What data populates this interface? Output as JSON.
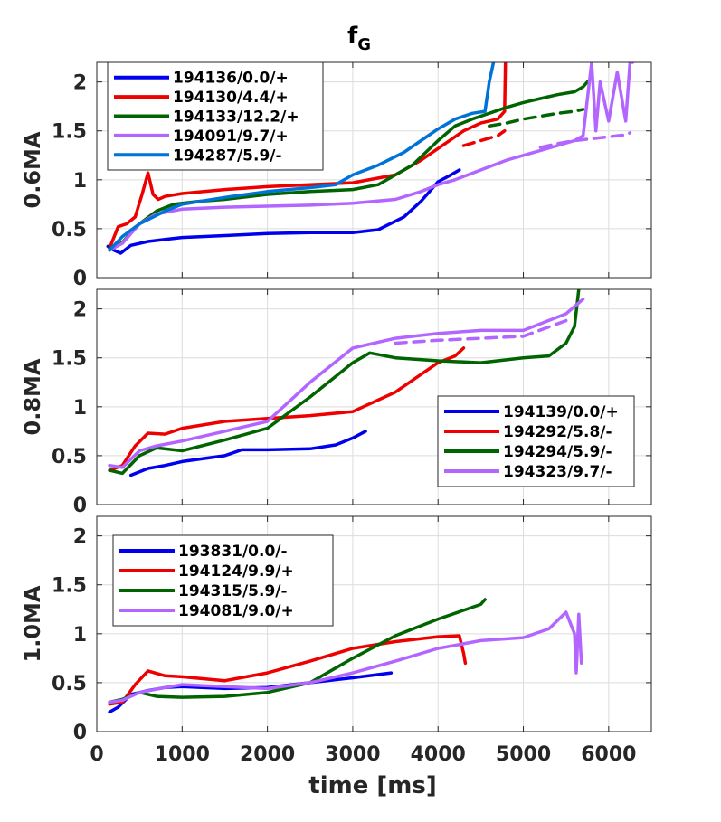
{
  "chart_data": {
    "type": "line",
    "title_main": "f",
    "title_sub": "G",
    "xlabel": "time [ms]",
    "xlim": [
      0,
      6500
    ],
    "xticks": [
      0,
      1000,
      2000,
      3000,
      4000,
      5000,
      6000
    ],
    "xtick_labels": [
      "0",
      "1000",
      "2000",
      "3000",
      "4000",
      "5000",
      "6000"
    ],
    "ylim": [
      0,
      2.2
    ],
    "yticks": [
      0,
      0.5,
      1,
      1.5,
      2
    ],
    "ytick_labels": [
      "0",
      "0.5",
      "1",
      "1.5",
      "2"
    ],
    "grid": true,
    "panels": [
      {
        "ylabel": "0.6MA",
        "legend_position": "top-left",
        "series": [
          {
            "name": "194136/0.0/+",
            "color": "#0000ee",
            "dashed": false,
            "x": [
              130,
              200,
              280,
              400,
              600,
              800,
              1000,
              1500,
              2000,
              2500,
              3000,
              3300,
              3600,
              3800,
              4000,
              4150,
              4250
            ],
            "y": [
              0.32,
              0.28,
              0.25,
              0.33,
              0.37,
              0.39,
              0.41,
              0.43,
              0.45,
              0.46,
              0.46,
              0.49,
              0.62,
              0.78,
              0.98,
              1.05,
              1.1
            ]
          },
          {
            "name": "194130/4.4/+",
            "color": "#ee0000",
            "dashed": false,
            "x": [
              150,
              250,
              350,
              450,
              530,
              600,
              660,
              720,
              800,
              1000,
              1500,
              2000,
              2500,
              3000,
              3500,
              3800,
              4100,
              4300,
              4500,
              4700,
              4780,
              4790
            ],
            "y": [
              0.3,
              0.52,
              0.55,
              0.62,
              0.85,
              1.07,
              0.85,
              0.8,
              0.83,
              0.86,
              0.9,
              0.93,
              0.95,
              0.97,
              1.05,
              1.2,
              1.38,
              1.5,
              1.58,
              1.62,
              1.7,
              2.2
            ]
          },
          {
            "name": "194130/4.4/+ (dashed)",
            "color": "#ee0000",
            "dashed": true,
            "x": [
              4300,
              4500,
              4700,
              4780
            ],
            "y": [
              1.35,
              1.4,
              1.45,
              1.5
            ]
          },
          {
            "name": "194133/12.2/+",
            "color": "#006400",
            "dashed": false,
            "x": [
              150,
              300,
              500,
              700,
              900,
              1200,
              1500,
              2000,
              2500,
              3000,
              3300,
              3700,
              4000,
              4200,
              4400,
              4600,
              4800,
              5000,
              5200,
              5400,
              5600,
              5700,
              5750
            ],
            "y": [
              0.3,
              0.36,
              0.55,
              0.68,
              0.75,
              0.78,
              0.8,
              0.85,
              0.88,
              0.9,
              0.95,
              1.15,
              1.4,
              1.55,
              1.62,
              1.68,
              1.74,
              1.79,
              1.83,
              1.87,
              1.9,
              1.95,
              2.0
            ]
          },
          {
            "name": "194133/12.2/+ (dashed)",
            "color": "#006400",
            "dashed": true,
            "x": [
              4600,
              4800,
              5000,
              5200,
              5400,
              5600,
              5700
            ],
            "y": [
              1.55,
              1.58,
              1.62,
              1.65,
              1.68,
              1.7,
              1.72
            ]
          },
          {
            "name": "194091/9.7/+",
            "color": "#b266ff",
            "dashed": false,
            "x": [
              150,
              300,
              500,
              700,
              1000,
              1500,
              2000,
              2500,
              3000,
              3500,
              3800,
              4000,
              4200,
              4500,
              4800,
              5000,
              5200,
              5400,
              5600,
              5700,
              5800,
              5850,
              5900,
              6000,
              6100,
              6200,
              6250,
              6280
            ],
            "y": [
              0.28,
              0.35,
              0.55,
              0.65,
              0.7,
              0.72,
              0.73,
              0.74,
              0.76,
              0.8,
              0.88,
              0.95,
              1.0,
              1.1,
              1.2,
              1.25,
              1.3,
              1.35,
              1.4,
              1.45,
              2.2,
              1.5,
              2.0,
              1.6,
              2.1,
              1.6,
              2.2,
              2.2
            ]
          },
          {
            "name": "194091/9.7/+ (dashed)",
            "color": "#b266ff",
            "dashed": true,
            "x": [
              5200,
              5400,
              5600,
              5800,
              6000,
              6200,
              6250
            ],
            "y": [
              1.33,
              1.37,
              1.4,
              1.42,
              1.44,
              1.46,
              1.48
            ]
          },
          {
            "name": "194287/5.9/-",
            "color": "#0073d9",
            "dashed": false,
            "x": [
              150,
              300,
              500,
              800,
              1000,
              1500,
              2000,
              2500,
              2800,
              3000,
              3300,
              3600,
              3800,
              4000,
              4200,
              4400,
              4550,
              4600,
              4650
            ],
            "y": [
              0.28,
              0.42,
              0.55,
              0.68,
              0.75,
              0.82,
              0.88,
              0.92,
              0.95,
              1.05,
              1.15,
              1.28,
              1.4,
              1.52,
              1.62,
              1.68,
              1.7,
              2.0,
              2.2
            ]
          }
        ],
        "legend": [
          {
            "label": "194136/0.0/+",
            "color": "#0000ee"
          },
          {
            "label": "194130/4.4/+",
            "color": "#ee0000"
          },
          {
            "label": "194133/12.2/+",
            "color": "#006400"
          },
          {
            "label": "194091/9.7/+",
            "color": "#b266ff"
          },
          {
            "label": "194287/5.9/-",
            "color": "#0073d9"
          }
        ]
      },
      {
        "ylabel": "0.8MA",
        "legend_position": "center-right",
        "series": [
          {
            "name": "194139/0.0/+",
            "color": "#0000ee",
            "dashed": false,
            "x": [
              400,
              600,
              800,
              1000,
              1500,
              1700,
              2000,
              2500,
              2800,
              3000,
              3150
            ],
            "y": [
              0.3,
              0.37,
              0.4,
              0.44,
              0.5,
              0.56,
              0.56,
              0.57,
              0.61,
              0.68,
              0.75
            ]
          },
          {
            "name": "194292/5.8/-",
            "color": "#ee0000",
            "dashed": false,
            "x": [
              150,
              300,
              450,
              600,
              800,
              1000,
              1500,
              2000,
              2500,
              3000,
              3500,
              4000,
              4200,
              4300
            ],
            "y": [
              0.35,
              0.4,
              0.6,
              0.73,
              0.72,
              0.78,
              0.85,
              0.88,
              0.91,
              0.95,
              1.15,
              1.45,
              1.52,
              1.6
            ]
          },
          {
            "name": "194294/5.9/-",
            "color": "#006400",
            "dashed": false,
            "x": [
              150,
              300,
              500,
              700,
              1000,
              1500,
              2000,
              2500,
              3000,
              3200,
              3500,
              4000,
              4500,
              5000,
              5300,
              5500,
              5600,
              5650
            ],
            "y": [
              0.35,
              0.32,
              0.5,
              0.58,
              0.55,
              0.66,
              0.78,
              1.1,
              1.45,
              1.55,
              1.5,
              1.47,
              1.45,
              1.5,
              1.52,
              1.65,
              1.82,
              2.2
            ]
          },
          {
            "name": "194323/9.7/-",
            "color": "#b266ff",
            "dashed": false,
            "x": [
              150,
              300,
              500,
              700,
              1000,
              1500,
              2000,
              2500,
              3000,
              3500,
              4000,
              4500,
              5000,
              5500,
              5700
            ],
            "y": [
              0.4,
              0.38,
              0.55,
              0.6,
              0.65,
              0.75,
              0.85,
              1.25,
              1.6,
              1.7,
              1.75,
              1.78,
              1.78,
              1.95,
              2.1
            ]
          },
          {
            "name": "194323/9.7/- (dashed)",
            "color": "#b266ff",
            "dashed": true,
            "x": [
              3500,
              4000,
              4500,
              5000,
              5500
            ],
            "y": [
              1.65,
              1.68,
              1.7,
              1.72,
              1.88
            ]
          }
        ],
        "legend": [
          {
            "label": "194139/0.0/+",
            "color": "#0000ee"
          },
          {
            "label": "194292/5.8/-",
            "color": "#ee0000"
          },
          {
            "label": "194294/5.9/-",
            "color": "#006400"
          },
          {
            "label": "194323/9.7/-",
            "color": "#b266ff"
          }
        ]
      },
      {
        "ylabel": "1.0MA",
        "legend_position": "top-left",
        "series": [
          {
            "name": "193831/0.0/-",
            "color": "#0000ee",
            "dashed": false,
            "x": [
              150,
              250,
              400,
              600,
              800,
              1000,
              1500,
              2000,
              2500,
              3000,
              3450
            ],
            "y": [
              0.2,
              0.25,
              0.38,
              0.42,
              0.45,
              0.46,
              0.44,
              0.45,
              0.5,
              0.55,
              0.6
            ]
          },
          {
            "name": "194124/9.9/+",
            "color": "#ee0000",
            "dashed": false,
            "x": [
              150,
              300,
              450,
              600,
              800,
              1000,
              1500,
              2000,
              2500,
              3000,
              3500,
              4000,
              4250,
              4300,
              4320
            ],
            "y": [
              0.28,
              0.3,
              0.48,
              0.62,
              0.57,
              0.56,
              0.52,
              0.6,
              0.72,
              0.85,
              0.92,
              0.97,
              0.98,
              0.8,
              0.7
            ]
          },
          {
            "name": "194315/5.9/-",
            "color": "#006400",
            "dashed": false,
            "x": [
              150,
              300,
              500,
              700,
              1000,
              1500,
              2000,
              2500,
              3000,
              3500,
              4000,
              4500,
              4550
            ],
            "y": [
              0.3,
              0.33,
              0.4,
              0.36,
              0.35,
              0.36,
              0.4,
              0.5,
              0.75,
              0.98,
              1.15,
              1.3,
              1.35
            ]
          },
          {
            "name": "194081/9.0/+",
            "color": "#b266ff",
            "dashed": false,
            "x": [
              150,
              300,
              500,
              800,
              1000,
              1500,
              2000,
              2500,
              3000,
              3500,
              4000,
              4500,
              5000,
              5300,
              5500,
              5600,
              5620,
              5650,
              5680
            ],
            "y": [
              0.3,
              0.32,
              0.4,
              0.45,
              0.48,
              0.46,
              0.44,
              0.5,
              0.6,
              0.72,
              0.85,
              0.93,
              0.96,
              1.05,
              1.22,
              1.0,
              0.6,
              1.2,
              0.7
            ]
          }
        ],
        "legend": [
          {
            "label": "193831/0.0/-",
            "color": "#0000ee"
          },
          {
            "label": "194124/9.9/+",
            "color": "#ee0000"
          },
          {
            "label": "194315/5.9/-",
            "color": "#006400"
          },
          {
            "label": "194081/9.0/+",
            "color": "#b266ff"
          }
        ]
      }
    ]
  }
}
